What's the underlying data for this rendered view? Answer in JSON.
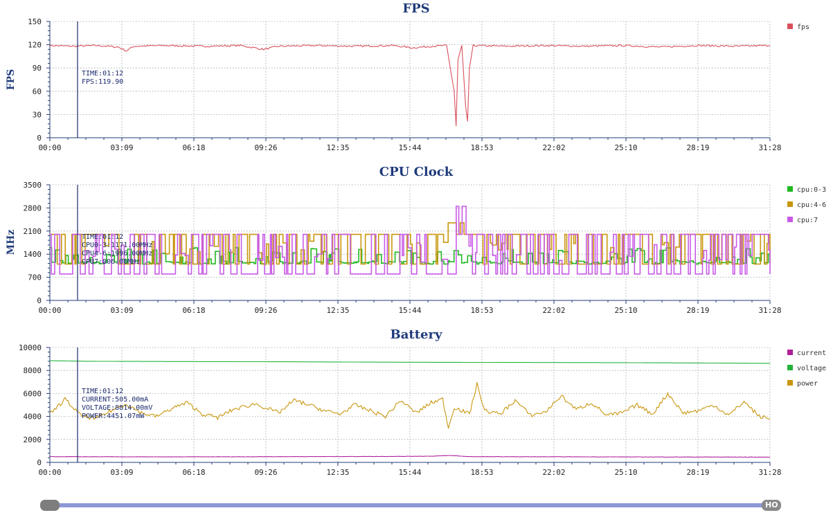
{
  "chart_data": [
    {
      "type": "line",
      "title": "FPS",
      "ylabel": "FPS",
      "ylim": [
        0,
        150
      ],
      "yticks": [
        0,
        30,
        60,
        90,
        120,
        150
      ],
      "x_tick_labels": [
        "00:00",
        "03:09",
        "06:18",
        "09:26",
        "12:35",
        "15:44",
        "18:53",
        "22:02",
        "25:10",
        "28:19",
        "31:28"
      ],
      "xlim_seconds": [
        0,
        1888
      ],
      "grid": true,
      "legend_placement": "right",
      "cursor": {
        "x": "01:12",
        "lines": [
          "TIME:01:12",
          "FPS:119.90"
        ]
      },
      "series": [
        {
          "name": "fps",
          "color": "#d94f5c",
          "points": [
            [
              0,
              119
            ],
            [
              60,
              118
            ],
            [
              120,
              119
            ],
            [
              180,
              117
            ],
            [
              200,
              112
            ],
            [
              220,
              118
            ],
            [
              300,
              119
            ],
            [
              400,
              118
            ],
            [
              500,
              119
            ],
            [
              560,
              114
            ],
            [
              600,
              118
            ],
            [
              700,
              119
            ],
            [
              800,
              118
            ],
            [
              900,
              119
            ],
            [
              950,
              116
            ],
            [
              1000,
              118
            ],
            [
              1040,
              119
            ],
            [
              1060,
              60
            ],
            [
              1065,
              15
            ],
            [
              1070,
              100
            ],
            [
              1080,
              119
            ],
            [
              1090,
              40
            ],
            [
              1095,
              20
            ],
            [
              1100,
              90
            ],
            [
              1110,
              119
            ],
            [
              1200,
              118
            ],
            [
              1300,
              119
            ],
            [
              1400,
              118
            ],
            [
              1500,
              119
            ],
            [
              1600,
              117
            ],
            [
              1700,
              119
            ],
            [
              1800,
              118
            ],
            [
              1888,
              119
            ]
          ]
        }
      ]
    },
    {
      "type": "line",
      "title": "CPU Clock",
      "ylabel": "MHz",
      "ylim": [
        0,
        3500
      ],
      "yticks": [
        0,
        700,
        1400,
        2100,
        2800,
        3500
      ],
      "x_tick_labels": [
        "00:00",
        "03:09",
        "06:18",
        "09:26",
        "12:35",
        "15:44",
        "18:53",
        "22:02",
        "25:10",
        "28:19",
        "31:28"
      ],
      "xlim_seconds": [
        0,
        1888
      ],
      "grid": true,
      "legend_placement": "right",
      "cursor": {
        "x": "01:12",
        "lines": [
          "TIME:01:12",
          "CPU0-3:1171.00MHz",
          "CPU4-6:1996.00MHz",
          "CPU7:806.00MHz"
        ]
      },
      "series": [
        {
          "name": "cpu:0-3",
          "color": "#1fb81f",
          "low": 1100,
          "high": 1600,
          "spike_max": 1800
        },
        {
          "name": "cpu:4-6",
          "color": "#c8960e",
          "low": 1100,
          "high": 2000,
          "spike_max": 2350
        },
        {
          "name": "cpu:7",
          "color": "#c85ae6",
          "low": 800,
          "high": 2000,
          "spike_max": 2850
        }
      ]
    },
    {
      "type": "line",
      "title": "Battery",
      "ylabel": "",
      "ylim": [
        0,
        10000
      ],
      "yticks": [
        0,
        2000,
        4000,
        6000,
        8000,
        10000
      ],
      "x_tick_labels": [
        "00:00",
        "03:09",
        "06:18",
        "09:26",
        "12:35",
        "15:44",
        "18:53",
        "22:02",
        "25:10",
        "28:19",
        "31:28"
      ],
      "xlim_seconds": [
        0,
        1888
      ],
      "grid": true,
      "legend_placement": "right",
      "cursor": {
        "x": "01:12",
        "lines": [
          "TIME:01:12",
          "CURRENT:505.00mA",
          "VOLTAGE:8814.00mV",
          "POWER:4451.07mW"
        ]
      },
      "series": [
        {
          "name": "current",
          "color": "#b0209a",
          "points": [
            [
              0,
              500
            ],
            [
              300,
              480
            ],
            [
              600,
              500
            ],
            [
              900,
              520
            ],
            [
              1000,
              540
            ],
            [
              1050,
              600
            ],
            [
              1100,
              500
            ],
            [
              1300,
              490
            ],
            [
              1600,
              470
            ],
            [
              1888,
              460
            ]
          ]
        },
        {
          "name": "voltage",
          "color": "#22b33a",
          "points": [
            [
              0,
              8850
            ],
            [
              100,
              8800
            ],
            [
              300,
              8780
            ],
            [
              600,
              8760
            ],
            [
              900,
              8720
            ],
            [
              1200,
              8700
            ],
            [
              1500,
              8680
            ],
            [
              1700,
              8650
            ],
            [
              1888,
              8620
            ]
          ]
        },
        {
          "name": "power",
          "color": "#c8960e",
          "points": [
            [
              0,
              4200
            ],
            [
              40,
              5500
            ],
            [
              80,
              4100
            ],
            [
              120,
              3800
            ],
            [
              160,
              4500
            ],
            [
              200,
              5100
            ],
            [
              240,
              4300
            ],
            [
              280,
              4000
            ],
            [
              320,
              4700
            ],
            [
              360,
              5200
            ],
            [
              400,
              4200
            ],
            [
              440,
              3900
            ],
            [
              480,
              4600
            ],
            [
              540,
              5100
            ],
            [
              600,
              4300
            ],
            [
              640,
              5400
            ],
            [
              680,
              5000
            ],
            [
              720,
              4500
            ],
            [
              760,
              4200
            ],
            [
              800,
              5000
            ],
            [
              840,
              4500
            ],
            [
              880,
              4000
            ],
            [
              920,
              5400
            ],
            [
              960,
              4300
            ],
            [
              1000,
              5200
            ],
            [
              1030,
              5500
            ],
            [
              1045,
              3000
            ],
            [
              1060,
              4800
            ],
            [
              1080,
              4500
            ],
            [
              1100,
              4200
            ],
            [
              1120,
              6800
            ],
            [
              1140,
              4500
            ],
            [
              1180,
              4200
            ],
            [
              1220,
              5400
            ],
            [
              1260,
              4100
            ],
            [
              1300,
              4400
            ],
            [
              1340,
              5800
            ],
            [
              1380,
              4600
            ],
            [
              1420,
              5200
            ],
            [
              1460,
              4100
            ],
            [
              1500,
              4300
            ],
            [
              1540,
              5000
            ],
            [
              1580,
              4200
            ],
            [
              1620,
              6000
            ],
            [
              1660,
              4300
            ],
            [
              1700,
              4500
            ],
            [
              1740,
              5000
            ],
            [
              1780,
              4100
            ],
            [
              1820,
              5300
            ],
            [
              1860,
              4000
            ],
            [
              1888,
              3800
            ]
          ]
        }
      ]
    }
  ],
  "scrollbar": {
    "label": "HO"
  }
}
